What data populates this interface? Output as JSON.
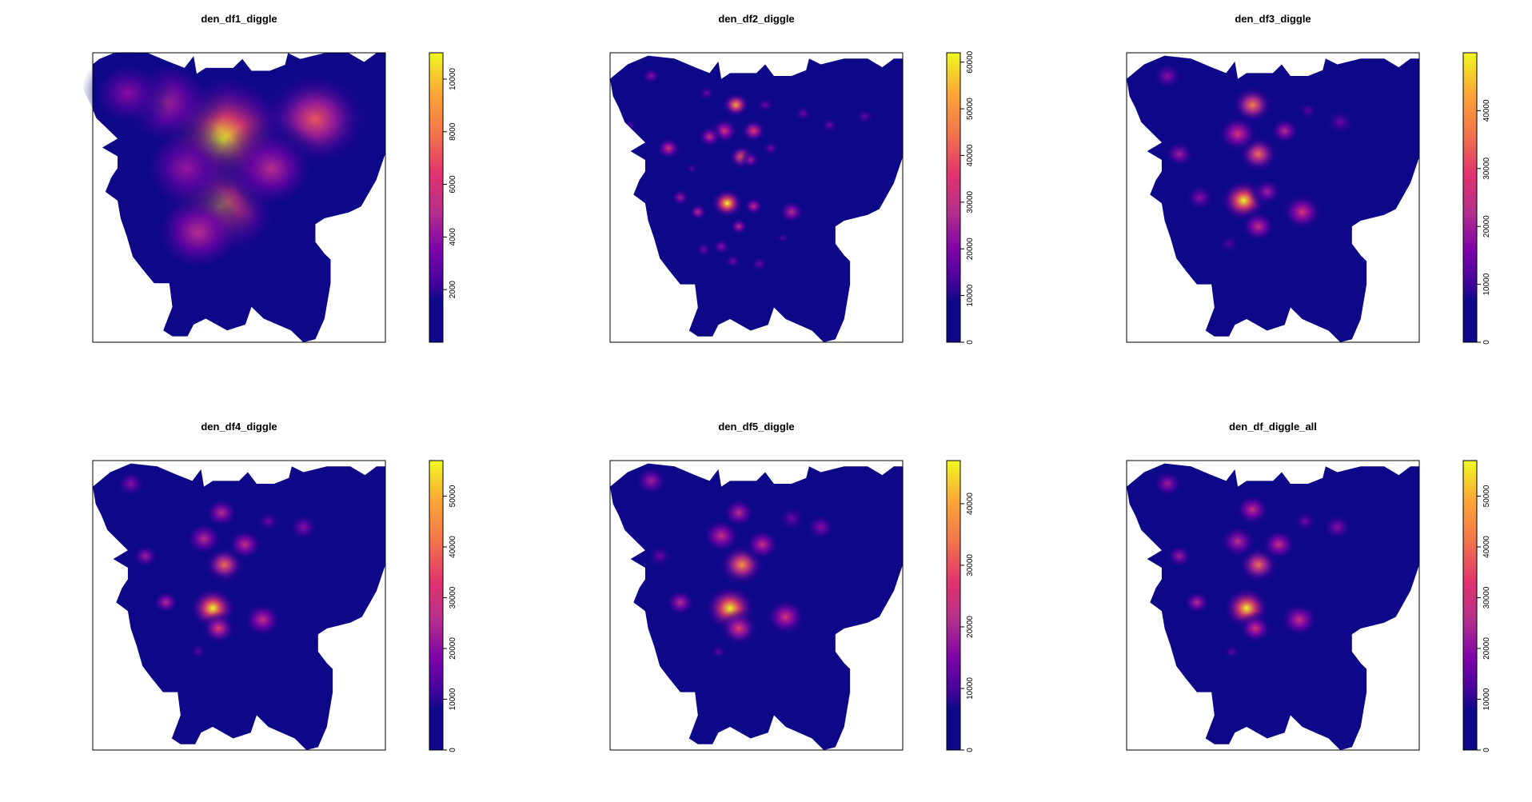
{
  "chart_data": [
    {
      "type": "heatmap",
      "title": "den_df1_diggle",
      "xlabel": "",
      "ylabel": "",
      "legend": {
        "title": "",
        "ticks": [
          2000,
          4000,
          6000,
          8000,
          10000
        ],
        "range": [
          0,
          11000
        ]
      },
      "hotspots": [
        {
          "x": 0.44,
          "y": 0.3,
          "v": 1.0,
          "r": 0.16
        },
        {
          "x": 0.43,
          "y": 0.53,
          "v": 0.88,
          "r": 0.13
        },
        {
          "x": 0.76,
          "y": 0.23,
          "v": 0.65,
          "r": 0.12
        },
        {
          "x": 0.25,
          "y": 0.17,
          "v": 0.42,
          "r": 0.13
        },
        {
          "x": 0.61,
          "y": 0.4,
          "v": 0.45,
          "r": 0.12
        },
        {
          "x": 0.36,
          "y": 0.62,
          "v": 0.45,
          "r": 0.12
        },
        {
          "x": 0.12,
          "y": 0.14,
          "v": 0.35,
          "r": 0.1
        },
        {
          "x": 0.32,
          "y": 0.4,
          "v": 0.38,
          "r": 0.12
        }
      ]
    },
    {
      "type": "heatmap",
      "title": "den_df2_diggle",
      "xlabel": "",
      "ylabel": "",
      "legend": {
        "title": "",
        "ticks": [
          0,
          10000,
          20000,
          30000,
          40000,
          50000,
          60000
        ],
        "range": [
          0,
          62000
        ]
      },
      "hotspots": [
        {
          "x": 0.4,
          "y": 0.52,
          "v": 1.0,
          "r": 0.035
        },
        {
          "x": 0.43,
          "y": 0.18,
          "v": 0.85,
          "r": 0.03
        },
        {
          "x": 0.45,
          "y": 0.36,
          "v": 0.7,
          "r": 0.03
        },
        {
          "x": 0.49,
          "y": 0.27,
          "v": 0.6,
          "r": 0.03
        },
        {
          "x": 0.39,
          "y": 0.27,
          "v": 0.55,
          "r": 0.035
        },
        {
          "x": 0.34,
          "y": 0.29,
          "v": 0.5,
          "r": 0.03
        },
        {
          "x": 0.2,
          "y": 0.33,
          "v": 0.55,
          "r": 0.03
        },
        {
          "x": 0.49,
          "y": 0.53,
          "v": 0.5,
          "r": 0.025
        },
        {
          "x": 0.62,
          "y": 0.55,
          "v": 0.45,
          "r": 0.035
        },
        {
          "x": 0.44,
          "y": 0.6,
          "v": 0.45,
          "r": 0.025
        },
        {
          "x": 0.3,
          "y": 0.55,
          "v": 0.45,
          "r": 0.025
        },
        {
          "x": 0.24,
          "y": 0.5,
          "v": 0.4,
          "r": 0.025
        },
        {
          "x": 0.48,
          "y": 0.37,
          "v": 0.4,
          "r": 0.025
        },
        {
          "x": 0.14,
          "y": 0.08,
          "v": 0.35,
          "r": 0.025
        },
        {
          "x": 0.33,
          "y": 0.14,
          "v": 0.3,
          "r": 0.025
        },
        {
          "x": 0.75,
          "y": 0.25,
          "v": 0.3,
          "r": 0.025
        },
        {
          "x": 0.66,
          "y": 0.21,
          "v": 0.3,
          "r": 0.025
        },
        {
          "x": 0.53,
          "y": 0.18,
          "v": 0.3,
          "r": 0.025
        },
        {
          "x": 0.38,
          "y": 0.67,
          "v": 0.35,
          "r": 0.025
        },
        {
          "x": 0.32,
          "y": 0.68,
          "v": 0.3,
          "r": 0.025
        },
        {
          "x": 0.51,
          "y": 0.73,
          "v": 0.3,
          "r": 0.025
        },
        {
          "x": 0.59,
          "y": 0.64,
          "v": 0.25,
          "r": 0.025
        },
        {
          "x": 0.42,
          "y": 0.72,
          "v": 0.3,
          "r": 0.025
        },
        {
          "x": 0.55,
          "y": 0.33,
          "v": 0.3,
          "r": 0.025
        },
        {
          "x": 0.87,
          "y": 0.22,
          "v": 0.3,
          "r": 0.025
        },
        {
          "x": 0.07,
          "y": 0.25,
          "v": 0.25,
          "r": 0.025
        },
        {
          "x": 0.28,
          "y": 0.4,
          "v": 0.25,
          "r": 0.025
        }
      ]
    },
    {
      "type": "heatmap",
      "title": "den_df3_diggle",
      "xlabel": "",
      "ylabel": "",
      "legend": {
        "title": "",
        "ticks": [
          0,
          10000,
          20000,
          30000,
          40000
        ],
        "range": [
          0,
          50000
        ]
      },
      "hotspots": [
        {
          "x": 0.4,
          "y": 0.51,
          "v": 1.0,
          "r": 0.05
        },
        {
          "x": 0.43,
          "y": 0.18,
          "v": 0.75,
          "r": 0.045
        },
        {
          "x": 0.45,
          "y": 0.35,
          "v": 0.7,
          "r": 0.045
        },
        {
          "x": 0.38,
          "y": 0.28,
          "v": 0.55,
          "r": 0.05
        },
        {
          "x": 0.6,
          "y": 0.55,
          "v": 0.55,
          "r": 0.05
        },
        {
          "x": 0.45,
          "y": 0.6,
          "v": 0.5,
          "r": 0.045
        },
        {
          "x": 0.54,
          "y": 0.27,
          "v": 0.45,
          "r": 0.04
        },
        {
          "x": 0.18,
          "y": 0.35,
          "v": 0.4,
          "r": 0.04
        },
        {
          "x": 0.25,
          "y": 0.5,
          "v": 0.35,
          "r": 0.04
        },
        {
          "x": 0.14,
          "y": 0.08,
          "v": 0.35,
          "r": 0.04
        },
        {
          "x": 0.73,
          "y": 0.24,
          "v": 0.3,
          "r": 0.04
        },
        {
          "x": 0.62,
          "y": 0.2,
          "v": 0.25,
          "r": 0.04
        },
        {
          "x": 0.48,
          "y": 0.48,
          "v": 0.4,
          "r": 0.04
        },
        {
          "x": 0.35,
          "y": 0.66,
          "v": 0.25,
          "r": 0.04
        }
      ]
    },
    {
      "type": "heatmap",
      "title": "den_df4_diggle",
      "xlabel": "",
      "ylabel": "",
      "legend": {
        "title": "",
        "ticks": [
          0,
          10000,
          20000,
          30000,
          40000,
          50000
        ],
        "range": [
          0,
          57000
        ]
      },
      "hotspots": [
        {
          "x": 0.41,
          "y": 0.51,
          "v": 1.0,
          "r": 0.05
        },
        {
          "x": 0.45,
          "y": 0.36,
          "v": 0.7,
          "r": 0.045
        },
        {
          "x": 0.43,
          "y": 0.58,
          "v": 0.6,
          "r": 0.04
        },
        {
          "x": 0.52,
          "y": 0.29,
          "v": 0.5,
          "r": 0.045
        },
        {
          "x": 0.38,
          "y": 0.27,
          "v": 0.45,
          "r": 0.05
        },
        {
          "x": 0.58,
          "y": 0.55,
          "v": 0.5,
          "r": 0.05
        },
        {
          "x": 0.44,
          "y": 0.18,
          "v": 0.45,
          "r": 0.045
        },
        {
          "x": 0.18,
          "y": 0.33,
          "v": 0.4,
          "r": 0.035
        },
        {
          "x": 0.25,
          "y": 0.49,
          "v": 0.45,
          "r": 0.035
        },
        {
          "x": 0.13,
          "y": 0.08,
          "v": 0.35,
          "r": 0.04
        },
        {
          "x": 0.72,
          "y": 0.23,
          "v": 0.35,
          "r": 0.04
        },
        {
          "x": 0.6,
          "y": 0.21,
          "v": 0.3,
          "r": 0.035
        },
        {
          "x": 0.36,
          "y": 0.66,
          "v": 0.25,
          "r": 0.035
        }
      ]
    },
    {
      "type": "heatmap",
      "title": "den_df5_diggle",
      "xlabel": "",
      "ylabel": "",
      "legend": {
        "title": "",
        "ticks": [
          0,
          10000,
          20000,
          30000,
          40000
        ],
        "range": [
          0,
          47000
        ]
      },
      "hotspots": [
        {
          "x": 0.41,
          "y": 0.51,
          "v": 1.0,
          "r": 0.055
        },
        {
          "x": 0.45,
          "y": 0.36,
          "v": 0.8,
          "r": 0.05
        },
        {
          "x": 0.44,
          "y": 0.58,
          "v": 0.6,
          "r": 0.045
        },
        {
          "x": 0.52,
          "y": 0.29,
          "v": 0.5,
          "r": 0.045
        },
        {
          "x": 0.38,
          "y": 0.26,
          "v": 0.5,
          "r": 0.05
        },
        {
          "x": 0.6,
          "y": 0.54,
          "v": 0.55,
          "r": 0.05
        },
        {
          "x": 0.44,
          "y": 0.18,
          "v": 0.45,
          "r": 0.045
        },
        {
          "x": 0.24,
          "y": 0.49,
          "v": 0.45,
          "r": 0.04
        },
        {
          "x": 0.14,
          "y": 0.07,
          "v": 0.4,
          "r": 0.045
        },
        {
          "x": 0.72,
          "y": 0.23,
          "v": 0.35,
          "r": 0.04
        },
        {
          "x": 0.17,
          "y": 0.33,
          "v": 0.3,
          "r": 0.035
        },
        {
          "x": 0.62,
          "y": 0.2,
          "v": 0.3,
          "r": 0.04
        },
        {
          "x": 0.37,
          "y": 0.66,
          "v": 0.25,
          "r": 0.035
        }
      ]
    },
    {
      "type": "heatmap",
      "title": "den_df_diggle_all",
      "xlabel": "",
      "ylabel": "",
      "legend": {
        "title": "",
        "ticks": [
          0,
          10000,
          20000,
          30000,
          40000,
          50000
        ],
        "range": [
          0,
          57000
        ]
      },
      "hotspots": [
        {
          "x": 0.41,
          "y": 0.51,
          "v": 1.0,
          "r": 0.05
        },
        {
          "x": 0.45,
          "y": 0.36,
          "v": 0.7,
          "r": 0.045
        },
        {
          "x": 0.44,
          "y": 0.58,
          "v": 0.55,
          "r": 0.04
        },
        {
          "x": 0.52,
          "y": 0.29,
          "v": 0.5,
          "r": 0.045
        },
        {
          "x": 0.38,
          "y": 0.28,
          "v": 0.45,
          "r": 0.05
        },
        {
          "x": 0.59,
          "y": 0.55,
          "v": 0.5,
          "r": 0.05
        },
        {
          "x": 0.43,
          "y": 0.17,
          "v": 0.5,
          "r": 0.045
        },
        {
          "x": 0.18,
          "y": 0.33,
          "v": 0.4,
          "r": 0.035
        },
        {
          "x": 0.24,
          "y": 0.49,
          "v": 0.45,
          "r": 0.035
        },
        {
          "x": 0.14,
          "y": 0.08,
          "v": 0.4,
          "r": 0.04
        },
        {
          "x": 0.72,
          "y": 0.23,
          "v": 0.35,
          "r": 0.04
        },
        {
          "x": 0.61,
          "y": 0.21,
          "v": 0.3,
          "r": 0.035
        },
        {
          "x": 0.36,
          "y": 0.66,
          "v": 0.25,
          "r": 0.035
        }
      ]
    }
  ]
}
